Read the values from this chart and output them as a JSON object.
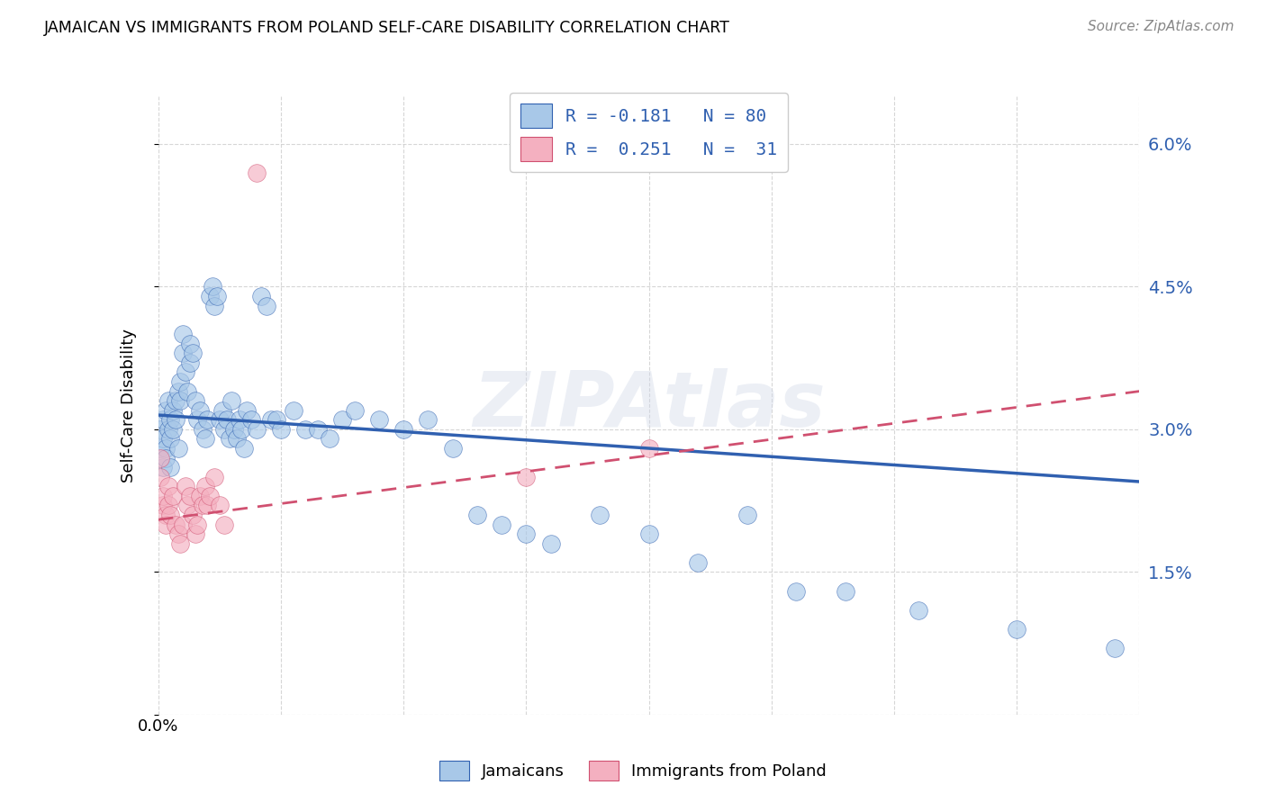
{
  "title": "JAMAICAN VS IMMIGRANTS FROM POLAND SELF-CARE DISABILITY CORRELATION CHART",
  "source": "Source: ZipAtlas.com",
  "ylabel": "Self-Care Disability",
  "yticks": [
    0.0,
    0.015,
    0.03,
    0.045,
    0.06
  ],
  "ytick_labels": [
    "",
    "1.5%",
    "3.0%",
    "4.5%",
    "6.0%"
  ],
  "xlim": [
    0.0,
    0.4
  ],
  "ylim": [
    0.0,
    0.065
  ],
  "blue_color": "#a8c8e8",
  "pink_color": "#f4b0c0",
  "blue_line_color": "#3060b0",
  "pink_line_color": "#d05070",
  "blue_scatter": [
    [
      0.001,
      0.03
    ],
    [
      0.001,
      0.028
    ],
    [
      0.002,
      0.031
    ],
    [
      0.002,
      0.026
    ],
    [
      0.002,
      0.029
    ],
    [
      0.003,
      0.032
    ],
    [
      0.003,
      0.028
    ],
    [
      0.003,
      0.027
    ],
    [
      0.004,
      0.03
    ],
    [
      0.004,
      0.033
    ],
    [
      0.005,
      0.029
    ],
    [
      0.005,
      0.031
    ],
    [
      0.005,
      0.026
    ],
    [
      0.006,
      0.032
    ],
    [
      0.006,
      0.03
    ],
    [
      0.007,
      0.033
    ],
    [
      0.007,
      0.031
    ],
    [
      0.008,
      0.034
    ],
    [
      0.008,
      0.028
    ],
    [
      0.009,
      0.035
    ],
    [
      0.009,
      0.033
    ],
    [
      0.01,
      0.038
    ],
    [
      0.01,
      0.04
    ],
    [
      0.011,
      0.036
    ],
    [
      0.012,
      0.034
    ],
    [
      0.013,
      0.039
    ],
    [
      0.013,
      0.037
    ],
    [
      0.014,
      0.038
    ],
    [
      0.015,
      0.033
    ],
    [
      0.016,
      0.031
    ],
    [
      0.017,
      0.032
    ],
    [
      0.018,
      0.03
    ],
    [
      0.019,
      0.029
    ],
    [
      0.02,
      0.031
    ],
    [
      0.021,
      0.044
    ],
    [
      0.022,
      0.045
    ],
    [
      0.023,
      0.043
    ],
    [
      0.024,
      0.044
    ],
    [
      0.025,
      0.031
    ],
    [
      0.026,
      0.032
    ],
    [
      0.027,
      0.03
    ],
    [
      0.028,
      0.031
    ],
    [
      0.029,
      0.029
    ],
    [
      0.03,
      0.033
    ],
    [
      0.031,
      0.03
    ],
    [
      0.032,
      0.029
    ],
    [
      0.033,
      0.031
    ],
    [
      0.034,
      0.03
    ],
    [
      0.035,
      0.028
    ],
    [
      0.036,
      0.032
    ],
    [
      0.038,
      0.031
    ],
    [
      0.04,
      0.03
    ],
    [
      0.042,
      0.044
    ],
    [
      0.044,
      0.043
    ],
    [
      0.046,
      0.031
    ],
    [
      0.048,
      0.031
    ],
    [
      0.05,
      0.03
    ],
    [
      0.055,
      0.032
    ],
    [
      0.06,
      0.03
    ],
    [
      0.065,
      0.03
    ],
    [
      0.07,
      0.029
    ],
    [
      0.075,
      0.031
    ],
    [
      0.08,
      0.032
    ],
    [
      0.09,
      0.031
    ],
    [
      0.1,
      0.03
    ],
    [
      0.11,
      0.031
    ],
    [
      0.12,
      0.028
    ],
    [
      0.13,
      0.021
    ],
    [
      0.14,
      0.02
    ],
    [
      0.15,
      0.019
    ],
    [
      0.16,
      0.018
    ],
    [
      0.18,
      0.021
    ],
    [
      0.2,
      0.019
    ],
    [
      0.22,
      0.016
    ],
    [
      0.24,
      0.021
    ],
    [
      0.26,
      0.013
    ],
    [
      0.28,
      0.013
    ],
    [
      0.31,
      0.011
    ],
    [
      0.35,
      0.009
    ],
    [
      0.39,
      0.007
    ]
  ],
  "pink_scatter": [
    [
      0.001,
      0.027
    ],
    [
      0.001,
      0.025
    ],
    [
      0.002,
      0.022
    ],
    [
      0.002,
      0.023
    ],
    [
      0.003,
      0.021
    ],
    [
      0.003,
      0.02
    ],
    [
      0.004,
      0.024
    ],
    [
      0.004,
      0.022
    ],
    [
      0.005,
      0.021
    ],
    [
      0.006,
      0.023
    ],
    [
      0.007,
      0.02
    ],
    [
      0.008,
      0.019
    ],
    [
      0.009,
      0.018
    ],
    [
      0.01,
      0.02
    ],
    [
      0.011,
      0.024
    ],
    [
      0.012,
      0.022
    ],
    [
      0.013,
      0.023
    ],
    [
      0.014,
      0.021
    ],
    [
      0.015,
      0.019
    ],
    [
      0.016,
      0.02
    ],
    [
      0.017,
      0.023
    ],
    [
      0.018,
      0.022
    ],
    [
      0.019,
      0.024
    ],
    [
      0.02,
      0.022
    ],
    [
      0.021,
      0.023
    ],
    [
      0.023,
      0.025
    ],
    [
      0.025,
      0.022
    ],
    [
      0.027,
      0.02
    ],
    [
      0.04,
      0.057
    ],
    [
      0.15,
      0.025
    ],
    [
      0.2,
      0.028
    ]
  ],
  "blue_line_y0": 0.0315,
  "blue_line_y1": 0.0245,
  "pink_line_y0": 0.0205,
  "pink_line_y1": 0.034,
  "grid_color": "#cccccc",
  "background_color": "#ffffff",
  "legend_text_color": "#3060b0",
  "watermark_text": "ZIPAtlas"
}
